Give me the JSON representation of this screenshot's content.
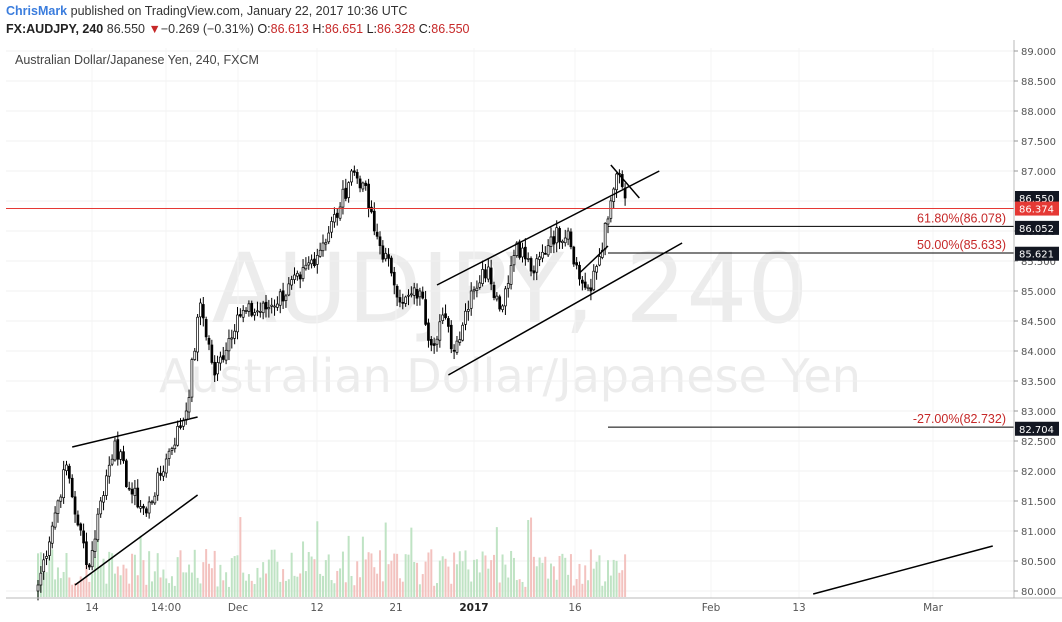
{
  "header": {
    "author": "ChrisMark",
    "published": " published on TradingView.com, January 22, 2017 10:36 UTC",
    "symbol": "FX:AUDJPY, 240",
    "last": " 86.550",
    "change_arrow": "▼",
    "change": "−0.269 (−0.31%)",
    "o_label": "O:",
    "o_value": "86.613",
    "h_label": "H:",
    "h_value": "86.651",
    "l_label": "L:",
    "l_value": "86.328",
    "c_label": "C:",
    "c_value": "86.550"
  },
  "chart_title": "Australian Dollar/Japanese Yen, 240, FXCM",
  "watermark": {
    "symbol": "AUDJPY, 240",
    "name": "Australian Dollar/Japanese Yen"
  },
  "colors": {
    "up_candle": "#ffffff",
    "down_candle": "#000000",
    "volume_up": "#bfe3c4",
    "volume_down": "#f3c2bf",
    "price_line": "#e53935",
    "fib_text": "#c62828",
    "axis_text": "#555555",
    "trendline": "#000000"
  },
  "chart_data": {
    "type": "candlestick",
    "title": "Australian Dollar/Japanese Yen, 240, FXCM",
    "ylim": [
      79.95,
      89.05
    ],
    "y_ticks": [
      "80.000",
      "80.500",
      "81.000",
      "81.500",
      "82.000",
      "82.500",
      "83.000",
      "83.500",
      "84.000",
      "84.500",
      "85.000",
      "85.500",
      "86.000",
      "86.500",
      "87.000",
      "87.500",
      "88.000",
      "88.500",
      "89.000"
    ],
    "x_ticks": [
      "14",
      "14:00",
      "Dec",
      "12",
      "21",
      "2017",
      "16",
      "Feb",
      "13",
      "Mar"
    ],
    "bold_x_ticks": [
      "2017"
    ],
    "price_path": [
      {
        "bar": 0,
        "price": 80.1
      },
      {
        "bar": 6,
        "price": 81.3
      },
      {
        "bar": 10,
        "price": 82.1
      },
      {
        "bar": 14,
        "price": 81.1
      },
      {
        "bar": 18,
        "price": 80.4
      },
      {
        "bar": 22,
        "price": 81.5
      },
      {
        "bar": 27,
        "price": 82.5
      },
      {
        "bar": 32,
        "price": 81.7
      },
      {
        "bar": 38,
        "price": 81.3
      },
      {
        "bar": 45,
        "price": 82.2
      },
      {
        "bar": 52,
        "price": 83.0
      },
      {
        "bar": 57,
        "price": 84.8
      },
      {
        "bar": 62,
        "price": 83.6
      },
      {
        "bar": 70,
        "price": 84.6
      },
      {
        "bar": 80,
        "price": 84.7
      },
      {
        "bar": 92,
        "price": 85.2
      },
      {
        "bar": 100,
        "price": 85.8
      },
      {
        "bar": 106,
        "price": 86.4
      },
      {
        "bar": 110,
        "price": 87.0
      },
      {
        "bar": 114,
        "price": 86.8
      },
      {
        "bar": 118,
        "price": 86.0
      },
      {
        "bar": 124,
        "price": 85.3
      },
      {
        "bar": 128,
        "price": 84.8
      },
      {
        "bar": 134,
        "price": 85.0
      },
      {
        "bar": 138,
        "price": 84.1
      },
      {
        "bar": 142,
        "price": 84.6
      },
      {
        "bar": 146,
        "price": 84.0
      },
      {
        "bar": 152,
        "price": 85.0
      },
      {
        "bar": 158,
        "price": 85.4
      },
      {
        "bar": 162,
        "price": 84.7
      },
      {
        "bar": 168,
        "price": 85.8
      },
      {
        "bar": 174,
        "price": 85.3
      },
      {
        "bar": 180,
        "price": 85.9
      },
      {
        "bar": 186,
        "price": 86.0
      },
      {
        "bar": 190,
        "price": 85.2
      },
      {
        "bar": 194,
        "price": 85.0
      },
      {
        "bar": 200,
        "price": 86.2
      },
      {
        "bar": 203,
        "price": 86.95
      },
      {
        "bar": 206,
        "price": 86.55
      }
    ],
    "last_price": 86.374,
    "fib_levels": [
      {
        "label": "61.80%(86.078)",
        "price": 86.078,
        "axis_label": "86.052"
      },
      {
        "label": "50.00%(85.633)",
        "price": 85.633,
        "axis_label": "85.621"
      },
      {
        "label": "-27.00%(82.732)",
        "price": 82.732,
        "axis_label": "82.704"
      }
    ],
    "axis_labels": [
      {
        "text": "86.550",
        "price": 86.55,
        "style": "dark"
      },
      {
        "text": "86.374",
        "price": 86.374,
        "style": "red"
      },
      {
        "text": "86.052",
        "price": 86.052,
        "style": "dark"
      },
      {
        "text": "85.621",
        "price": 85.621,
        "style": "dark"
      },
      {
        "text": "82.704",
        "price": 82.704,
        "style": "dark"
      }
    ],
    "trendlines": [
      {
        "name": "wedge-upper",
        "from": {
          "bar": 12,
          "price": 82.4
        },
        "to": {
          "bar": 56,
          "price": 82.9
        }
      },
      {
        "name": "wedge-lower",
        "from": {
          "bar": 13,
          "price": 80.1
        },
        "to": {
          "bar": 56,
          "price": 81.6
        }
      },
      {
        "name": "channel-upper",
        "from": {
          "bar": 140,
          "price": 85.1
        },
        "to": {
          "bar": 218,
          "price": 87.0
        }
      },
      {
        "name": "channel-lower",
        "from": {
          "bar": 144,
          "price": 83.6
        },
        "to": {
          "bar": 226,
          "price": 85.8
        }
      },
      {
        "name": "small-upper",
        "from": {
          "bar": 201,
          "price": 87.1
        },
        "to": {
          "bar": 211,
          "price": 86.55
        }
      },
      {
        "name": "small-lower",
        "from": {
          "bar": 190,
          "price": 85.3
        },
        "to": {
          "bar": 200,
          "price": 85.75
        }
      },
      {
        "name": "future-line",
        "from": {
          "bar": 272,
          "price": 79.95
        },
        "to": {
          "bar": 335,
          "price": 80.75
        }
      }
    ]
  }
}
